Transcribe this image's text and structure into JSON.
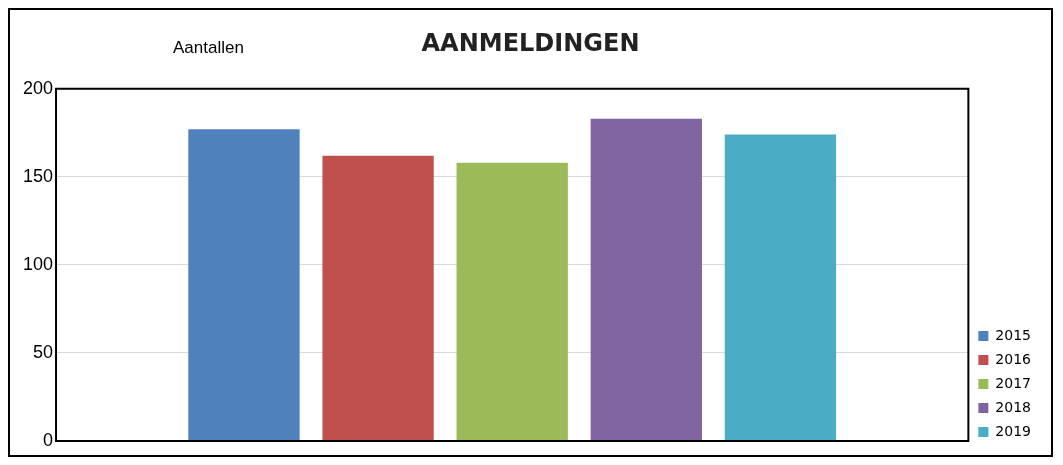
{
  "chart_data": {
    "type": "bar",
    "title": "AANMELDINGEN",
    "ylabel": "Aantallen",
    "categories": [
      null
    ],
    "series": [
      {
        "name": "2015",
        "color": "#4f81bd",
        "values": [
          177
        ]
      },
      {
        "name": "2016",
        "color": "#c0504d",
        "values": [
          162
        ]
      },
      {
        "name": "2017",
        "color": "#9bbb59",
        "values": [
          158
        ]
      },
      {
        "name": "2018",
        "color": "#8064a2",
        "values": [
          183
        ]
      },
      {
        "name": "2019",
        "color": "#4bacc6",
        "values": [
          174
        ]
      }
    ],
    "ylim": [
      0,
      200
    ],
    "yticks": [
      0,
      50,
      100,
      150,
      200
    ],
    "grid": "y",
    "legend": "right"
  }
}
